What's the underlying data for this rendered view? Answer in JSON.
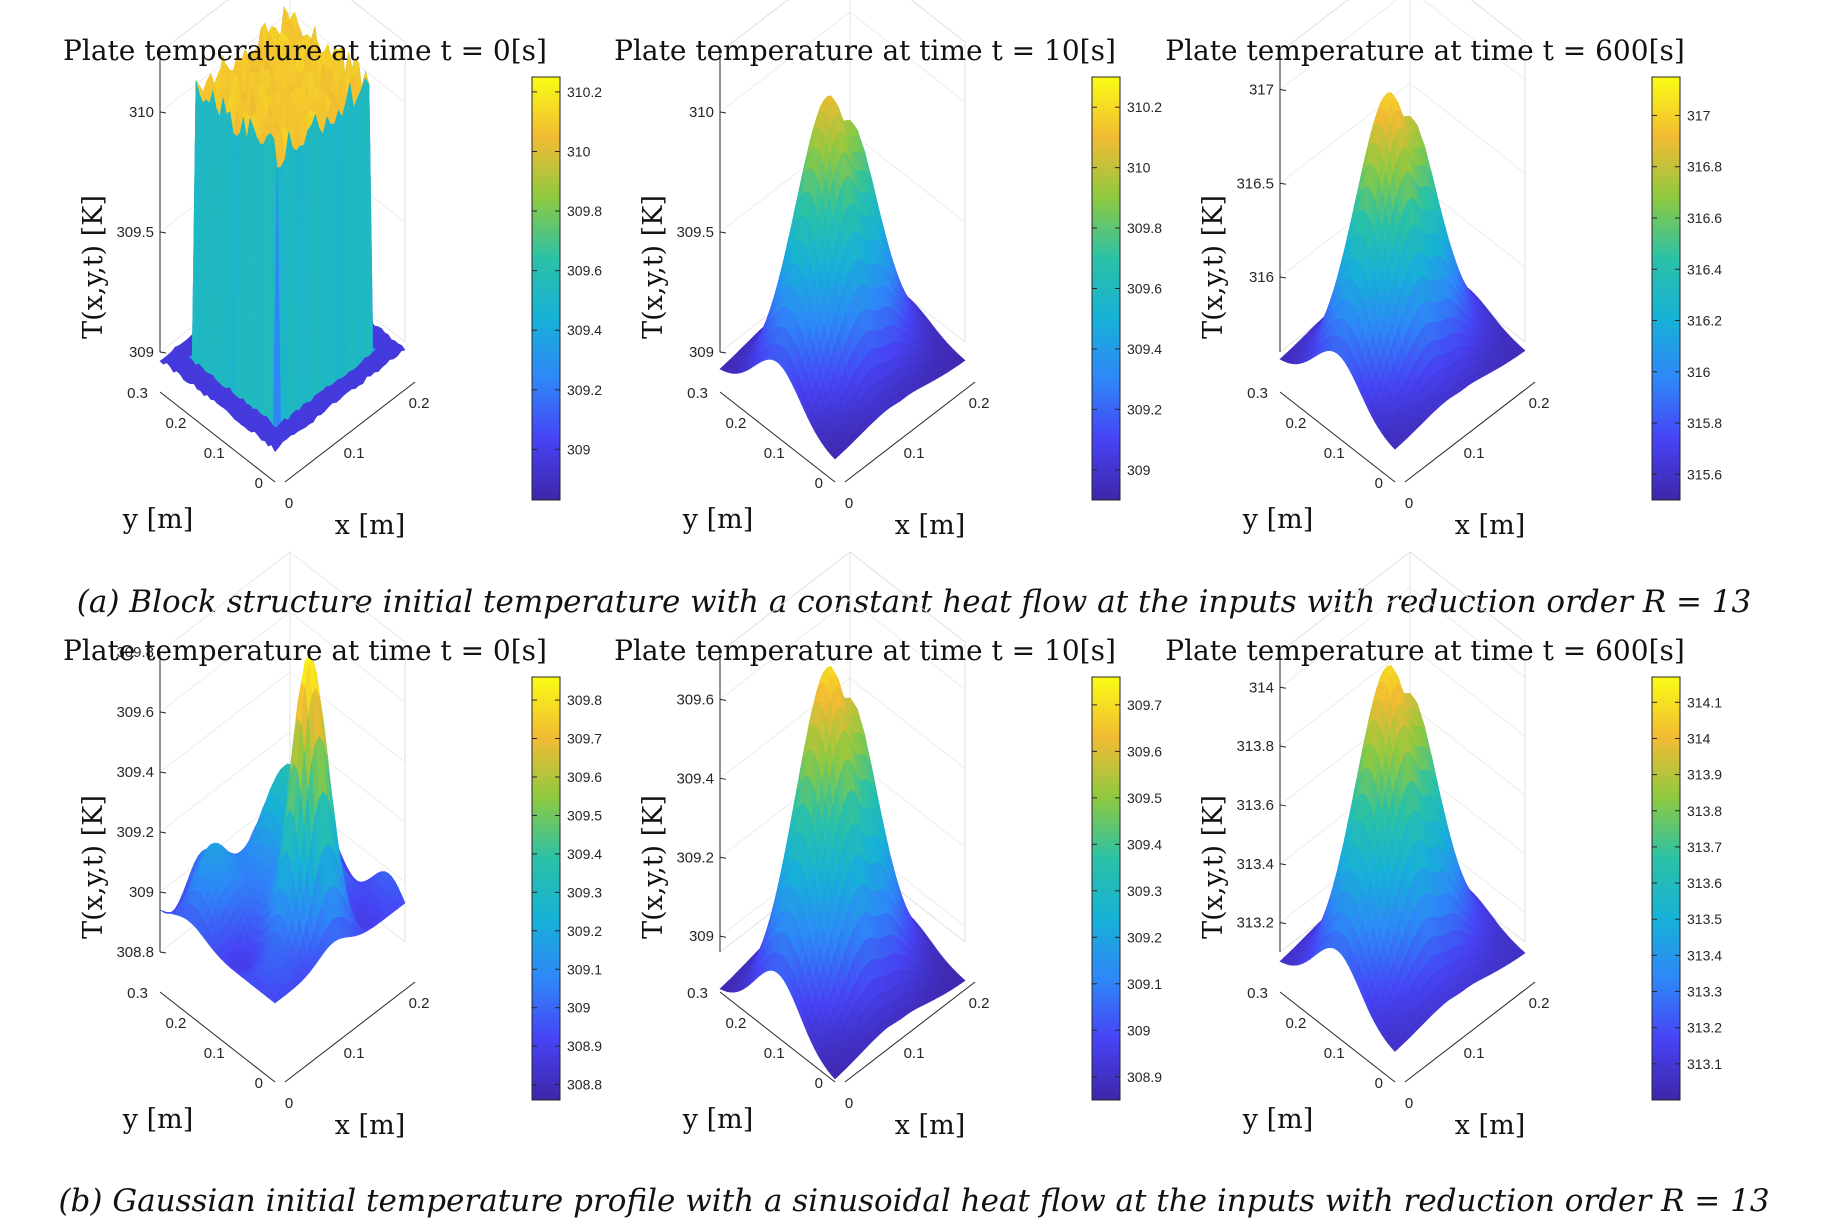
{
  "captions": {
    "a": "(a) Block structure initial temperature with a constant heat flow at the inputs with reduction order R = 13",
    "b": "(b) Gaussian initial temperature profile with a sinusoidal heat flow at the inputs with reduction order R = 13"
  },
  "colormap": [
    "#3e26a8",
    "#4743f4",
    "#2e87f7",
    "#17b1d7",
    "#2bc1a6",
    "#8ec941",
    "#f2bb33",
    "#f9fb15"
  ],
  "chart_data": [
    {
      "type": "surface3d",
      "row": "a",
      "title": "Plate temperature at time t = 0[s]",
      "xlabel": "x [m]",
      "ylabel": "y [m]",
      "zlabel": "T(x,y,t) [K]",
      "x_ticks": [
        "0",
        "0.1",
        "0.2"
      ],
      "y_ticks": [
        "0",
        "0.1",
        "0.2",
        "0.3"
      ],
      "z_ticks": [
        309,
        309.5,
        310
      ],
      "z_tick_labels": [
        "309",
        "309.5",
        "310"
      ],
      "zlim": [
        309,
        310.25
      ],
      "colorbar_ticks": [
        309,
        309.2,
        309.4,
        309.6,
        309.8,
        310,
        310.2
      ],
      "colorbar_labels": [
        "309",
        "309.2",
        "309.4",
        "309.6",
        "309.8",
        "310",
        "310.2"
      ],
      "colorbar_lim": [
        308.83,
        310.25
      ],
      "surface": {
        "kind": "block",
        "base": 308.97,
        "peak": 310.08,
        "noise": 0.07
      }
    },
    {
      "type": "surface3d",
      "row": "a",
      "title": "Plate temperature at time t = 10[s]",
      "xlabel": "x [m]",
      "ylabel": "y [m]",
      "zlabel": "T(x,y,t) [K]",
      "x_ticks": [
        "0",
        "0.1",
        "0.2"
      ],
      "y_ticks": [
        "0",
        "0.1",
        "0.2",
        "0.3"
      ],
      "z_ticks": [
        309,
        309.5,
        310
      ],
      "z_tick_labels": [
        "309",
        "309.5",
        "310"
      ],
      "zlim": [
        309,
        310.25
      ],
      "colorbar_ticks": [
        309,
        309.2,
        309.4,
        309.6,
        309.8,
        310,
        310.2
      ],
      "colorbar_labels": [
        "309",
        "309.2",
        "309.4",
        "309.6",
        "309.8",
        "310",
        "310.2"
      ],
      "colorbar_lim": [
        308.9,
        310.3
      ],
      "surface": {
        "kind": "twin",
        "base": 308.92,
        "amp": 1.2,
        "peak": 310.22
      }
    },
    {
      "type": "surface3d",
      "row": "a",
      "title": "Plate temperature at time t = 600[s]",
      "xlabel": "x [m]",
      "ylabel": "y [m]",
      "zlabel": "T(x,y,t) [K]",
      "x_ticks": [
        "0",
        "0.1",
        "0.2"
      ],
      "y_ticks": [
        "0",
        "0.1",
        "0.2",
        "0.3"
      ],
      "z_ticks": [
        316,
        316.5,
        317
      ],
      "z_tick_labels": [
        "316",
        "316.5",
        "317"
      ],
      "zlim": [
        315.6,
        317.2
      ],
      "colorbar_ticks": [
        315.6,
        315.8,
        316,
        316.2,
        316.4,
        316.6,
        316.8,
        317
      ],
      "colorbar_labels": [
        "315.6",
        "315.8",
        "316",
        "316.2",
        "316.4",
        "316.6",
        "316.8",
        "317"
      ],
      "colorbar_lim": [
        315.5,
        317.15
      ],
      "surface": {
        "kind": "twin",
        "base": 315.55,
        "amp": 1.5,
        "peak": 317.1
      }
    },
    {
      "type": "surface3d",
      "row": "b",
      "title": "Plate temperature at time t = 0[s]",
      "xlabel": "x [m]",
      "ylabel": "y [m]",
      "zlabel": "T(x,y,t) [K]",
      "x_ticks": [
        "0",
        "0.1",
        "0.2"
      ],
      "y_ticks": [
        "0",
        "0.1",
        "0.2",
        "0.3"
      ],
      "z_ticks": [
        308.8,
        309,
        309.2,
        309.4,
        309.6,
        309.8
      ],
      "z_tick_labels": [
        "308.8",
        "309",
        "309.2",
        "309.4",
        "309.6",
        "309.8"
      ],
      "zlim": [
        308.8,
        309.8
      ],
      "colorbar_ticks": [
        308.8,
        308.9,
        309,
        309.1,
        309.2,
        309.3,
        309.4,
        309.5,
        309.6,
        309.7,
        309.8
      ],
      "colorbar_labels": [
        "308.8",
        "308.9",
        "309",
        "309.1",
        "309.2",
        "309.3",
        "309.4",
        "309.5",
        "309.6",
        "309.7",
        "309.8"
      ],
      "colorbar_lim": [
        308.76,
        309.86
      ],
      "surface": {
        "kind": "gaussian",
        "base": 308.93,
        "peak": 309.86
      }
    },
    {
      "type": "surface3d",
      "row": "b",
      "title": "Plate temperature at time t = 10[s]",
      "xlabel": "x [m]",
      "ylabel": "y [m]",
      "zlabel": "T(x,y,t) [K]",
      "x_ticks": [
        "0",
        "0.1",
        "0.2"
      ],
      "y_ticks": [
        "0",
        "0.1",
        "0.2",
        "0.3"
      ],
      "z_ticks": [
        309,
        309.2,
        309.4,
        309.6
      ],
      "z_tick_labels": [
        "309",
        "309.2",
        "309.4",
        "309.6"
      ],
      "zlim": [
        308.96,
        309.72
      ],
      "colorbar_ticks": [
        308.9,
        309,
        309.1,
        309.2,
        309.3,
        309.4,
        309.5,
        309.6,
        309.7
      ],
      "colorbar_labels": [
        "308.9",
        "309",
        "309.1",
        "309.2",
        "309.3",
        "309.4",
        "309.5",
        "309.6",
        "309.7"
      ],
      "colorbar_lim": [
        308.85,
        309.76
      ],
      "surface": {
        "kind": "twin",
        "base": 308.86,
        "amp": 0.86,
        "peak": 309.72
      }
    },
    {
      "type": "surface3d",
      "row": "b",
      "title": "Plate temperature at time t = 600[s]",
      "xlabel": "x [m]",
      "ylabel": "y [m]",
      "zlabel": "T(x,y,t) [K]",
      "x_ticks": [
        "0",
        "0.1",
        "0.2"
      ],
      "y_ticks": [
        "0",
        "0.1",
        "0.2",
        "0.3"
      ],
      "z_ticks": [
        313.2,
        313.4,
        313.6,
        313.8,
        314
      ],
      "z_tick_labels": [
        "313.2",
        "313.4",
        "313.6",
        "313.8",
        "314"
      ],
      "zlim": [
        313.1,
        314.12
      ],
      "colorbar_ticks": [
        313.1,
        313.2,
        313.3,
        313.4,
        313.5,
        313.6,
        313.7,
        313.8,
        313.9,
        314,
        314.1
      ],
      "colorbar_labels": [
        "313.1",
        "313.2",
        "313.3",
        "313.4",
        "313.5",
        "313.6",
        "313.7",
        "313.8",
        "313.9",
        "314",
        "314.1"
      ],
      "colorbar_lim": [
        313.0,
        314.17
      ],
      "surface": {
        "kind": "twin",
        "base": 313.06,
        "amp": 1.06,
        "peak": 314.12
      }
    }
  ]
}
